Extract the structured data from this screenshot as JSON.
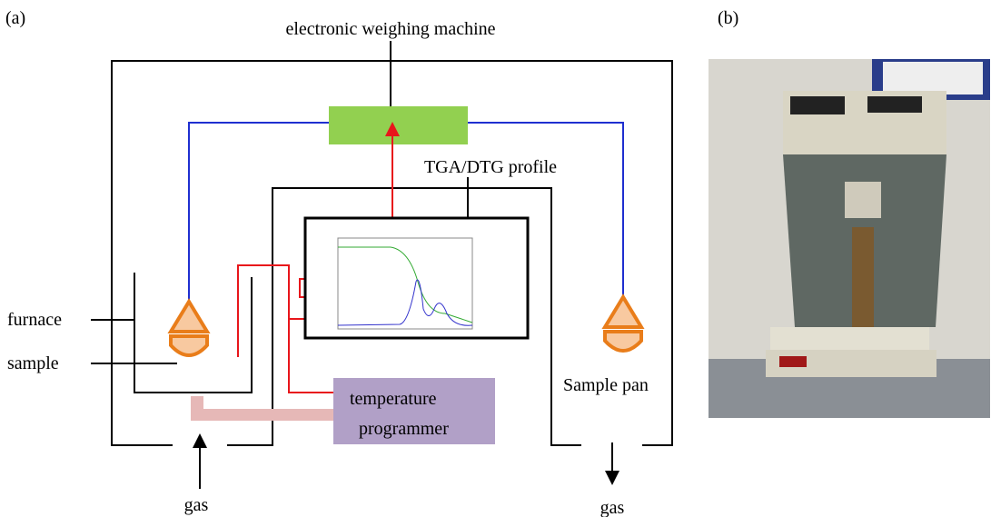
{
  "panel_a": "(a)",
  "panel_b": "(b)",
  "weighing_machine": "electronic weighing machine",
  "profile": "TGA/DTG profile",
  "furnace": "furnace",
  "sample": "sample",
  "programmer": [
    "temperature",
    "programmer"
  ],
  "sample_pan": "Sample pan",
  "gas_in": "gas",
  "gas_out": "gas"
}
